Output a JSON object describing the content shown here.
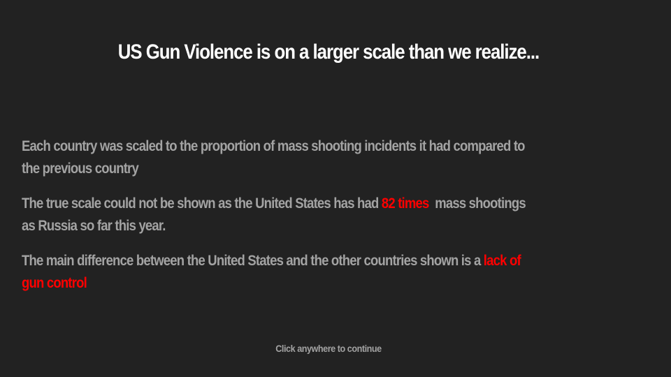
{
  "slide": {
    "title": "US Gun Violence is on a larger scale than we realize...",
    "paragraphs": {
      "p1": {
        "line1": "Each country was scaled to the proportion of mass shooting incidents it had compared to",
        "line2": "the previous country"
      },
      "p2": {
        "before": "The true scale could not be shown as the United States has had ",
        "highlight": "82 times",
        "after": "  mass shootings",
        "line2": "as Russia so far this year."
      },
      "p3": {
        "before": "The main difference between the United States and the other countries shown is a ",
        "highlight": "lack of",
        "line2": "gun control"
      }
    },
    "continue_prompt": "Click anywhere to continue"
  },
  "colors": {
    "background": "#222222",
    "title": "#ffffff",
    "body_text": "#a3a3a3",
    "highlight": "#ff0000"
  }
}
